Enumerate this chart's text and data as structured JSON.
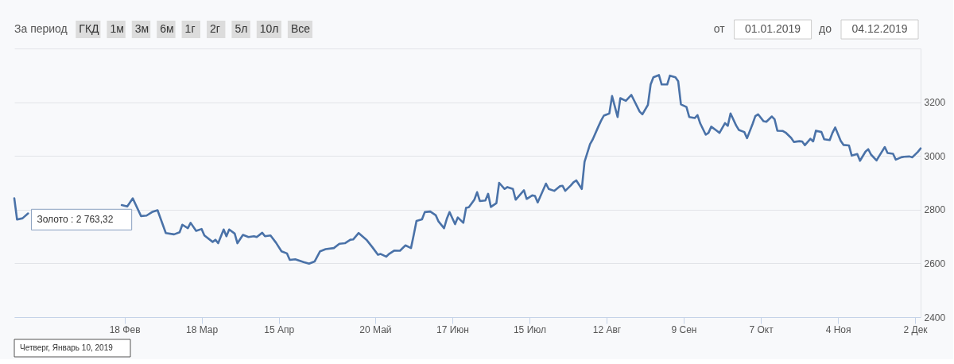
{
  "chart_data": {
    "type": "line",
    "color": "#4a72a8",
    "grid": "y",
    "xlim": [
      "2019-01-09",
      "2019-12-04"
    ],
    "xticks": [
      {
        "value": "2019-02-18",
        "label": "18 Фев"
      },
      {
        "value": "2019-03-18",
        "label": "18 Мар"
      },
      {
        "value": "2019-04-15",
        "label": "15 Апр"
      },
      {
        "value": "2019-05-20",
        "label": "20 Май"
      },
      {
        "value": "2019-06-17",
        "label": "17 Июн"
      },
      {
        "value": "2019-07-15",
        "label": "15 Июл"
      },
      {
        "value": "2019-08-12",
        "label": "12 Авг"
      },
      {
        "value": "2019-09-09",
        "label": "9 Сен"
      },
      {
        "value": "2019-10-07",
        "label": "7 Окт"
      },
      {
        "value": "2019-11-04",
        "label": "4 Ноя"
      },
      {
        "value": "2019-12-02",
        "label": "2 Дек"
      }
    ],
    "ylim": [
      2400,
      3400
    ],
    "yticks": [
      2400,
      2600,
      2800,
      3000,
      3200,
      {
        "value": 3400,
        "label": null
      }
    ],
    "x": [
      "2019-01-09",
      "2019-01-10",
      "2019-01-12",
      "2019-01-14",
      "2019-01-18",
      "2019-01-22",
      "2019-01-26",
      "2019-01-30",
      "2019-02-02",
      "2019-02-04",
      "2019-02-09",
      "2019-02-14",
      "2019-02-17",
      "2019-02-19",
      "2019-02-21",
      "2019-02-24",
      "2019-02-26",
      "2019-02-28",
      "2019-03-02",
      "2019-03-05",
      "2019-03-08",
      "2019-03-10",
      "2019-03-11",
      "2019-03-13",
      "2019-03-14",
      "2019-03-16",
      "2019-03-18",
      "2019-03-19",
      "2019-03-22",
      "2019-03-23",
      "2019-03-24",
      "2019-03-26",
      "2019-03-27",
      "2019-03-28",
      "2019-03-30",
      "2019-03-31",
      "2019-04-02",
      "2019-04-04",
      "2019-04-06",
      "2019-04-07",
      "2019-04-09",
      "2019-04-10",
      "2019-04-12",
      "2019-04-14",
      "2019-04-16",
      "2019-04-18",
      "2019-04-19",
      "2019-04-21",
      "2019-04-24",
      "2019-04-26",
      "2019-04-28",
      "2019-04-30",
      "2019-05-02",
      "2019-05-05",
      "2019-05-07",
      "2019-05-09",
      "2019-05-11",
      "2019-05-12",
      "2019-05-14",
      "2019-05-17",
      "2019-05-19",
      "2019-05-21",
      "2019-05-22",
      "2019-05-24",
      "2019-05-25",
      "2019-05-27",
      "2019-05-29",
      "2019-05-31",
      "2019-06-02",
      "2019-06-03",
      "2019-06-04",
      "2019-06-06",
      "2019-06-07",
      "2019-06-09",
      "2019-06-11",
      "2019-06-12",
      "2019-06-14",
      "2019-06-15",
      "2019-06-16",
      "2019-06-18",
      "2019-06-19",
      "2019-06-21",
      "2019-06-22",
      "2019-06-23",
      "2019-06-25",
      "2019-06-26",
      "2019-06-27",
      "2019-06-29",
      "2019-06-30",
      "2019-07-01",
      "2019-07-03",
      "2019-07-04",
      "2019-07-06",
      "2019-07-07",
      "2019-07-09",
      "2019-07-10",
      "2019-07-13",
      "2019-07-14",
      "2019-07-16",
      "2019-07-17",
      "2019-07-18",
      "2019-07-21",
      "2019-07-22",
      "2019-07-24",
      "2019-07-26",
      "2019-07-27",
      "2019-07-28",
      "2019-07-30",
      "2019-07-31",
      "2019-08-01",
      "2019-08-03",
      "2019-08-04",
      "2019-08-06",
      "2019-08-07",
      "2019-08-09",
      "2019-08-10",
      "2019-08-11",
      "2019-08-13",
      "2019-08-14",
      "2019-08-16",
      "2019-08-17",
      "2019-08-19",
      "2019-08-21",
      "2019-08-24",
      "2019-08-25",
      "2019-08-27",
      "2019-08-28",
      "2019-08-29",
      "2019-08-31",
      "2019-09-01",
      "2019-09-03",
      "2019-09-04",
      "2019-09-06",
      "2019-09-07",
      "2019-09-08",
      "2019-09-10",
      "2019-09-11",
      "2019-09-13",
      "2019-09-14",
      "2019-09-15",
      "2019-09-17",
      "2019-09-18",
      "2019-09-19",
      "2019-09-21",
      "2019-09-22",
      "2019-09-24",
      "2019-09-25",
      "2019-09-26",
      "2019-09-28",
      "2019-09-29",
      "2019-10-01",
      "2019-10-02",
      "2019-10-04",
      "2019-10-05",
      "2019-10-06",
      "2019-10-08",
      "2019-10-09",
      "2019-10-11",
      "2019-10-12",
      "2019-10-13",
      "2019-10-15",
      "2019-10-16",
      "2019-10-18",
      "2019-10-19",
      "2019-10-21",
      "2019-10-22",
      "2019-10-23",
      "2019-10-25",
      "2019-10-26",
      "2019-10-27",
      "2019-10-29",
      "2019-10-30",
      "2019-11-01",
      "2019-11-02",
      "2019-11-03",
      "2019-11-05",
      "2019-11-06",
      "2019-11-08",
      "2019-11-09",
      "2019-11-11",
      "2019-11-12",
      "2019-11-14",
      "2019-11-15",
      "2019-11-16",
      "2019-11-18",
      "2019-11-19",
      "2019-11-21",
      "2019-11-22",
      "2019-11-24",
      "2019-11-25",
      "2019-11-27",
      "2019-11-28",
      "2019-11-30",
      "2019-12-01",
      "2019-12-03",
      "2019-12-04"
    ],
    "values": [
      2842,
      2763,
      2768,
      2786,
      null,
      null,
      null,
      null,
      null,
      null,
      null,
      null,
      2817,
      2812,
      2842,
      2776,
      2778,
      2791,
      2798,
      2713,
      2708,
      2716,
      2744,
      2731,
      2751,
      2721,
      2728,
      2704,
      2680,
      2688,
      2675,
      2726,
      2701,
      2726,
      2711,
      2675,
      2706,
      2698,
      2701,
      2698,
      2714,
      2701,
      2704,
      2677,
      2645,
      2637,
      2613,
      2615,
      2605,
      2599,
      2607,
      2645,
      2653,
      2657,
      2673,
      2675,
      2688,
      2689,
      2713,
      2686,
      2660,
      2632,
      2635,
      2625,
      2635,
      2648,
      2647,
      2667,
      2657,
      2706,
      2758,
      2764,
      2791,
      2793,
      2779,
      2756,
      2731,
      2766,
      2791,
      2746,
      2771,
      2751,
      2807,
      2809,
      2837,
      2865,
      2832,
      2834,
      2859,
      2810,
      2824,
      2900,
      2877,
      2884,
      2877,
      2837,
      2872,
      2840,
      2853,
      2851,
      2827,
      2897,
      2877,
      2870,
      2887,
      2889,
      2870,
      2890,
      2902,
      2909,
      2877,
      2978,
      3044,
      3062,
      3109,
      3131,
      3150,
      3158,
      3223,
      3145,
      3215,
      3205,
      3227,
      3165,
      3155,
      3190,
      3266,
      3293,
      3301,
      3266,
      3266,
      3299,
      3293,
      3278,
      3192,
      3182,
      3145,
      3141,
      3152,
      3121,
      3079,
      3086,
      3109,
      3094,
      3086,
      3122,
      3112,
      3158,
      3114,
      3097,
      3089,
      3066,
      3119,
      3148,
      3155,
      3129,
      3127,
      3147,
      3136,
      3094,
      3093,
      3087,
      3067,
      3052,
      3055,
      3054,
      3040,
      3064,
      3054,
      3094,
      3089,
      3062,
      3059,
      3086,
      3106,
      3056,
      3041,
      3039,
      3001,
      3007,
      2982,
      3016,
      3025,
      3005,
      2983,
      3000,
      3033,
      3011,
      3008,
      2986,
      2995,
      2997,
      2998,
      2995,
      3015,
      3028
    ],
    "annotations": [
      "За период",
      "ГКД",
      "1м",
      "3м",
      "6м",
      "1г",
      "2г",
      "5л",
      "10л",
      "Все",
      "от",
      "01.01.2019",
      "до",
      "04.12.2019",
      "Четверг, Январь 10, 2019",
      {
        "text": "Золото : 2 763,32",
        "x": "2019-01-10",
        "y": 2763
      }
    ]
  }
}
